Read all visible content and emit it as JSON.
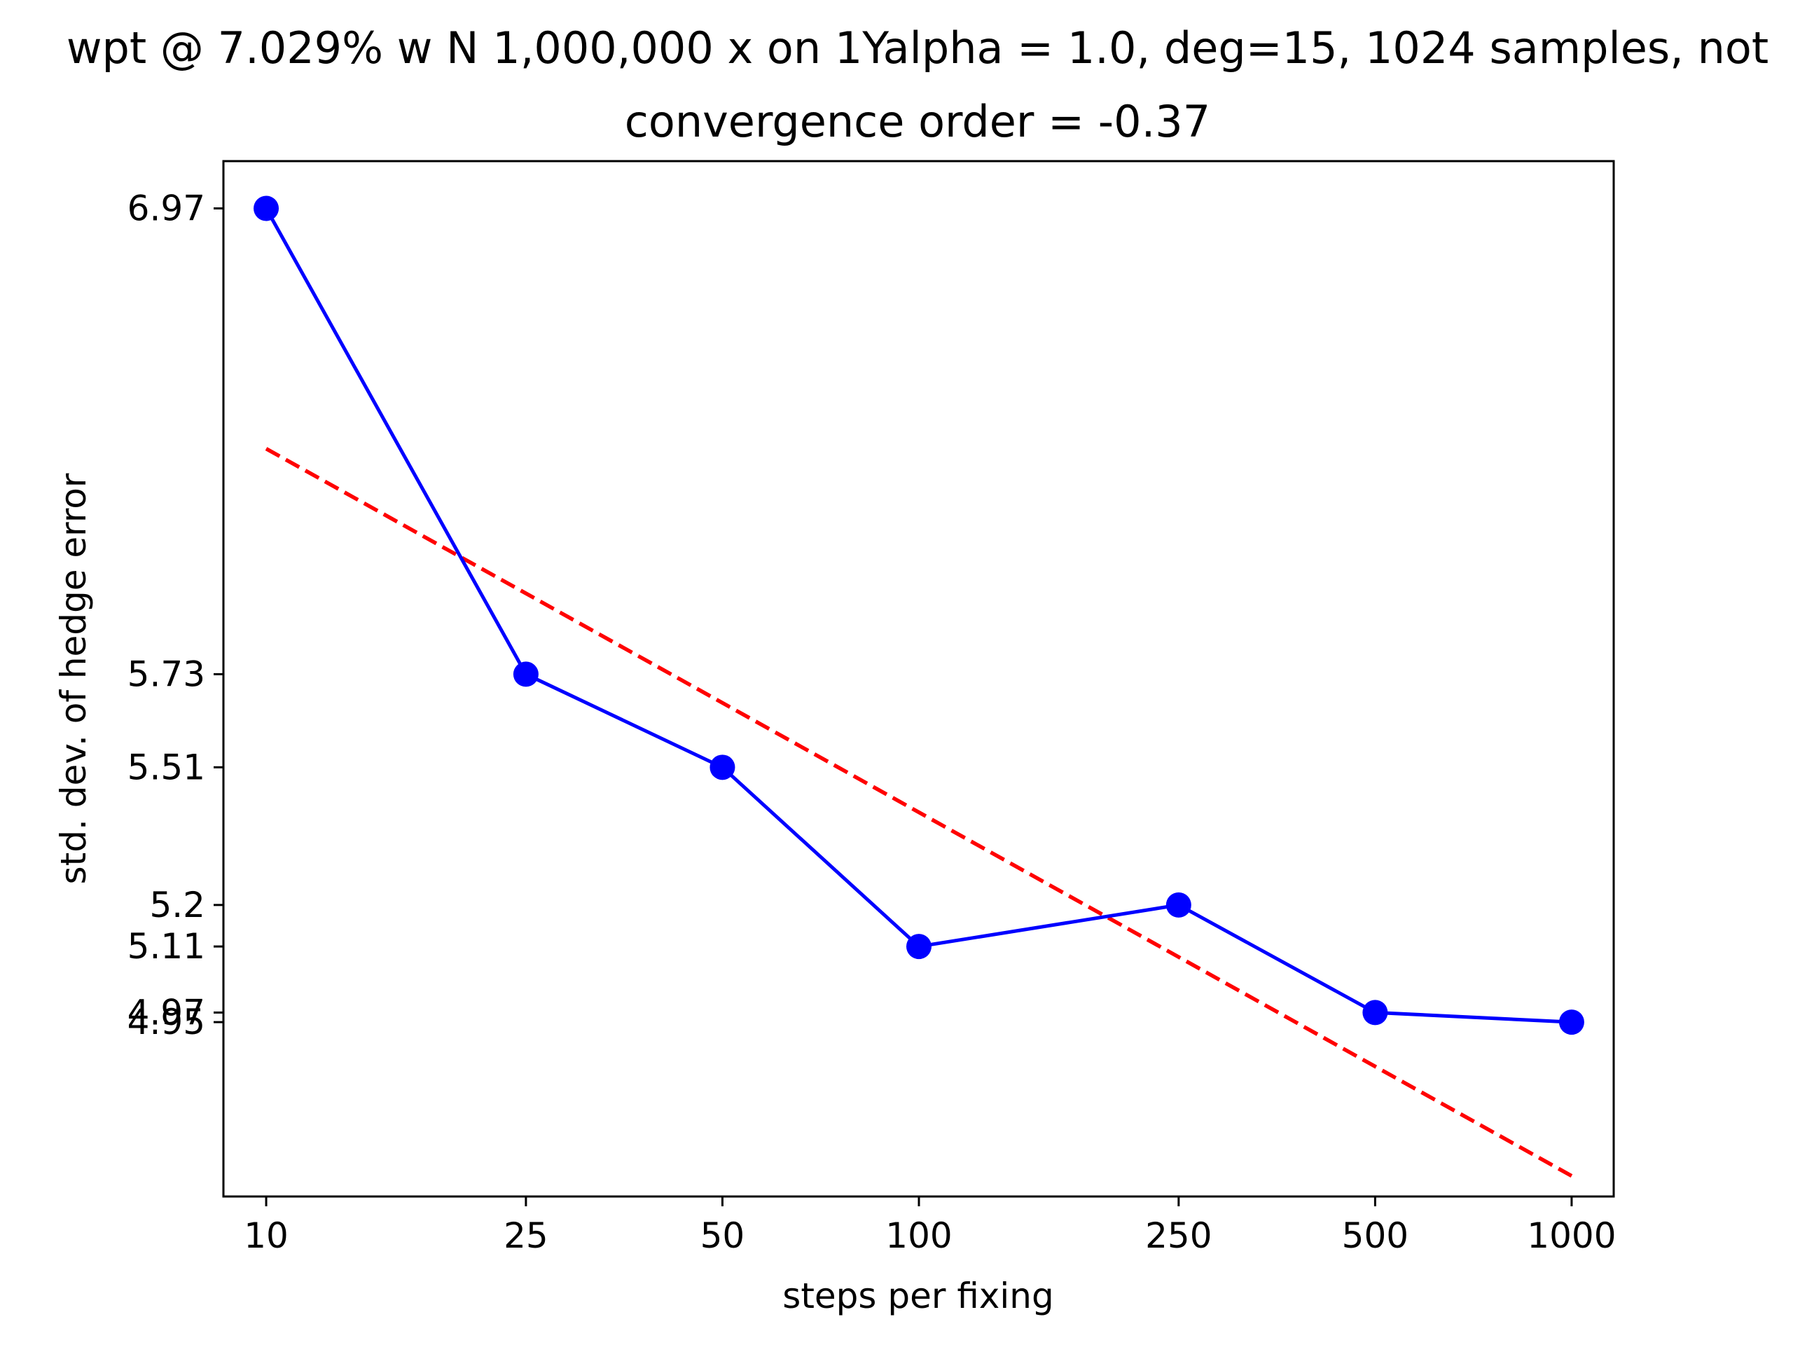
{
  "chart_data": {
    "type": "line",
    "title": "wpt @ 7.029% w N 1,000,000 x on 1Yalpha = 1.0, deg=15, 1024 samples, not",
    "subtitle": "convergence order = -0.37",
    "xlabel": "steps per fixing",
    "ylabel": "std. dev. of hedge error",
    "x_scale": "log",
    "y_scale": "log",
    "x": [
      10,
      25,
      50,
      100,
      250,
      500,
      1000
    ],
    "x_tick_labels": [
      "10",
      "25",
      "50",
      "100",
      "250",
      "500",
      "1000"
    ],
    "y_tick_values": [
      6.97,
      5.73,
      5.51,
      5.2,
      5.11,
      4.97,
      4.95
    ],
    "y_tick_labels": [
      "6.97",
      "5.73",
      "5.51",
      "5.2",
      "5.11",
      "4.97",
      "4.95"
    ],
    "xlim": [
      8.6,
      1160
    ],
    "ylim": [
      4.6,
      7.11
    ],
    "grid": false,
    "series": [
      {
        "style": "solid-line-with-markers",
        "color": "#0000ff",
        "values": [
          6.97,
          5.73,
          5.51,
          5.11,
          5.2,
          4.97,
          4.95
        ]
      },
      {
        "style": "dashed-line",
        "color": "#ff0000",
        "x": [
          10,
          1000
        ],
        "values": [
          6.3,
          4.64
        ]
      }
    ]
  }
}
